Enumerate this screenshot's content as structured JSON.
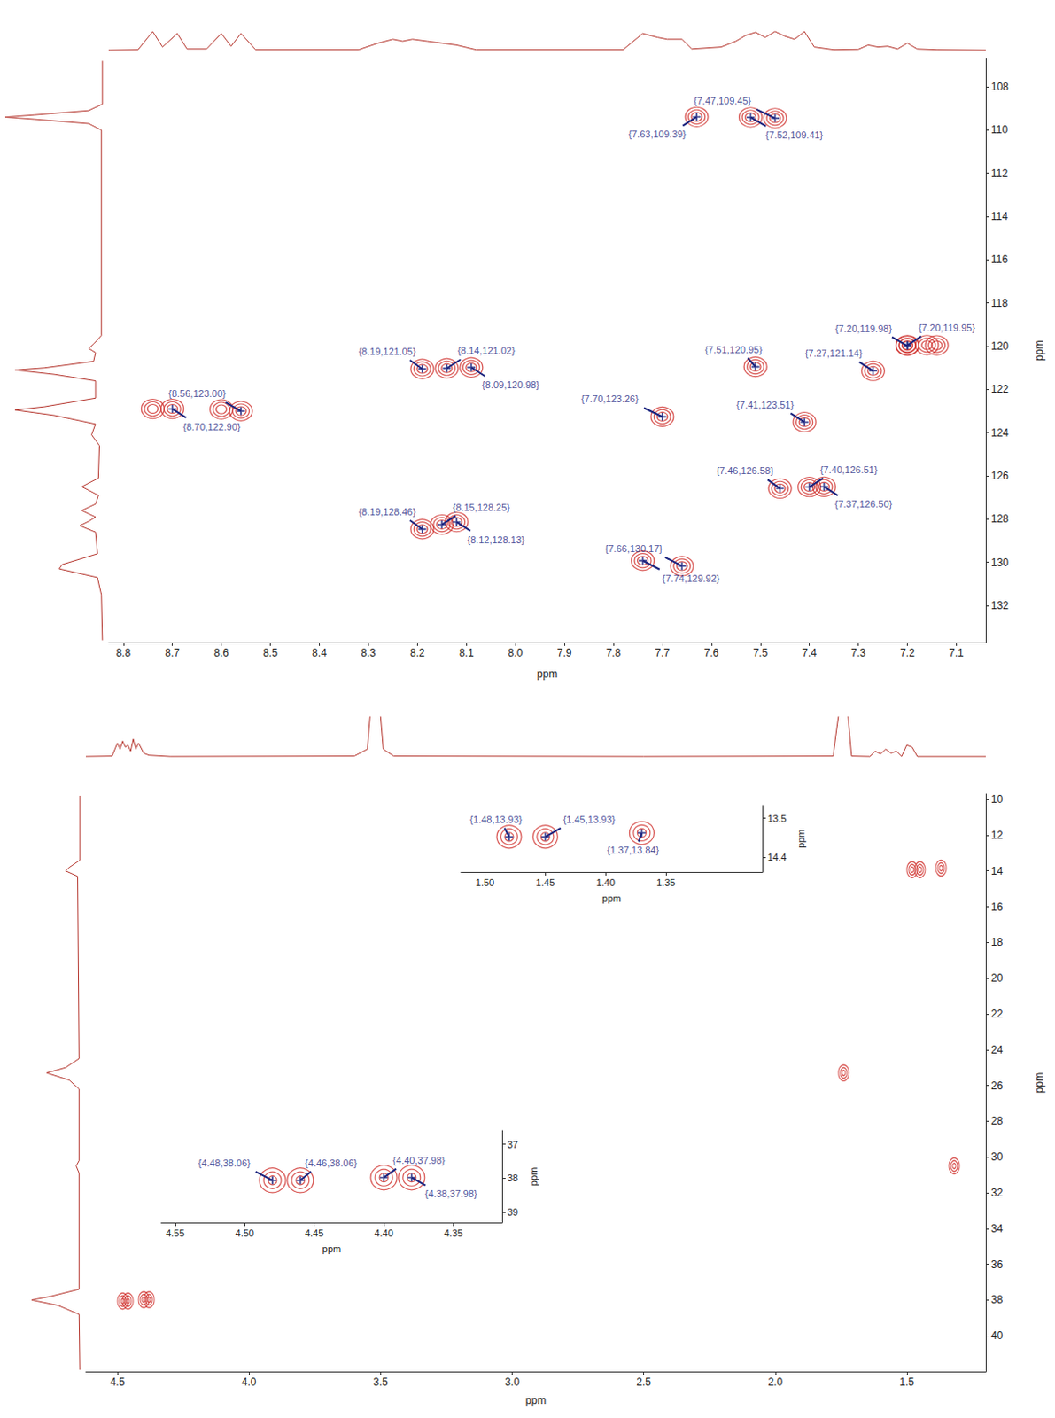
{
  "chart_data": [
    {
      "type": "scatter",
      "x_label": "ppm",
      "y_label": "ppm",
      "color": "#d0312d",
      "xlim": [
        8.83,
        7.04
      ],
      "ylim": [
        133.7,
        106.7
      ],
      "xticks": [
        8.8,
        8.7,
        8.6,
        8.5,
        8.4,
        8.3,
        8.2,
        8.1,
        {
          "value": 8,
          "label": "8.0"
        },
        7.9,
        7.8,
        7.7,
        7.6,
        7.5,
        7.4,
        7.3,
        7.2,
        7.1
      ],
      "yticks": [
        108,
        110,
        112,
        114,
        116,
        118,
        120,
        122,
        124,
        126,
        128,
        130,
        132
      ],
      "peaks": {
        "x": [
          7.47,
          7.63,
          7.52,
          8.19,
          8.14,
          8.09,
          8.56,
          8.7,
          7.7,
          8.19,
          8.15,
          8.12,
          7.66,
          7.74,
          7.51,
          7.27,
          7.2,
          7.2,
          7.41,
          7.46,
          7.4,
          7.37,
          8.74,
          8.6,
          7.16,
          7.14
        ],
        "y": [
          109.45,
          109.39,
          109.41,
          121.05,
          121.02,
          120.98,
          123.0,
          122.9,
          123.26,
          128.46,
          128.25,
          128.13,
          130.17,
          129.92,
          120.95,
          121.14,
          119.98,
          119.95,
          123.51,
          126.58,
          126.51,
          126.5,
          122.9,
          122.92,
          119.95,
          119.96
        ],
        "labels": [
          "{7.47,109.45}",
          "{7.63,109.39}",
          "{7.52,109.41}",
          "{8.19,121.05}",
          "{8.14,121.02}",
          "{8.09,120.98}",
          "{8.56,123.00}",
          "{8.70,122.90}",
          "{7.70,123.26}",
          "{8.19,128.46}",
          "{8.15,128.25}",
          "{8.12,128.13}",
          "{7.66,130.17}",
          "{7.74,129.92}",
          "{7.51,120.95}",
          "{7.27,121.14}",
          "{7.20,119.98}",
          "{7.20,119.95}",
          "{7.41,123.51}",
          "{7.46,126.58}",
          "{7.40,126.51}",
          "{7.37,126.50}",
          null,
          null,
          null,
          null
        ]
      },
      "x_projection": {
        "x": [
          8.83,
          8.77,
          8.74,
          8.72,
          8.69,
          8.67,
          8.63,
          8.6,
          8.58,
          8.56,
          8.53,
          8.32,
          8.28,
          8.25,
          8.23,
          8.21,
          8.18,
          8.15,
          8.12,
          8.08,
          7.78,
          7.74,
          7.71,
          7.69,
          7.66,
          7.64,
          7.58,
          7.55,
          7.53,
          7.51,
          7.49,
          7.47,
          7.45,
          7.43,
          7.41,
          7.39,
          7.35,
          7.3,
          7.28,
          7.26,
          7.24,
          7.22,
          7.2,
          7.18,
          7.14,
          7.04
        ],
        "values": [
          0.02,
          0.03,
          0.5,
          0.1,
          0.45,
          0.05,
          0.05,
          0.45,
          0.12,
          0.45,
          0.03,
          0.03,
          0.2,
          0.3,
          0.25,
          0.3,
          0.25,
          0.2,
          0.15,
          0.03,
          0.03,
          0.45,
          0.35,
          0.3,
          0.3,
          0.05,
          0.1,
          0.25,
          0.4,
          0.48,
          0.35,
          0.5,
          0.38,
          0.3,
          0.5,
          0.1,
          0.03,
          0.04,
          0.15,
          0.1,
          0.12,
          0.05,
          0.2,
          0.05,
          0.03,
          0.02
        ],
        "range": [
          0,
          1
        ]
      },
      "y_projection": {
        "y": [
          106.8,
          108.8,
          109.1,
          109.3,
          109.4,
          109.5,
          109.7,
          110,
          119.5,
          119.9,
          120.1,
          120.3,
          120.7,
          121,
          121.1,
          121.3,
          121.6,
          122.4,
          122.8,
          122.95,
          123.2,
          123.6,
          124.1,
          124.6,
          126.1,
          126.5,
          126.9,
          127.3,
          127.6,
          127.9,
          128.1,
          128.3,
          128.6,
          129.6,
          130.1,
          130.3,
          130.7,
          131.5,
          133.6
        ],
        "values": [
          0.01,
          0.01,
          0.15,
          0.7,
          1.0,
          0.7,
          0.15,
          0.02,
          0.02,
          0.1,
          0.15,
          0.08,
          0.1,
          0.6,
          0.9,
          0.5,
          0.08,
          0.08,
          0.6,
          0.9,
          0.5,
          0.08,
          0.12,
          0.04,
          0.05,
          0.22,
          0.05,
          0.08,
          0.22,
          0.08,
          0.15,
          0.24,
          0.08,
          0.06,
          0.42,
          0.45,
          0.06,
          0.02,
          0.01
        ],
        "range": [
          0,
          1
        ]
      }
    },
    {
      "type": "scatter",
      "x_label": "ppm",
      "y_label": "ppm",
      "color": "#d0312d",
      "xlim": [
        4.62,
        1.2
      ],
      "ylim": [
        42,
        9.7
      ],
      "xticks": [
        4.5,
        {
          "value": 4,
          "label": "4.0"
        },
        3.5,
        {
          "value": 3,
          "label": "3.0"
        },
        2.5,
        {
          "value": 2,
          "label": "2.0"
        },
        1.5
      ],
      "yticks": [
        10,
        12,
        14,
        16,
        18,
        20,
        22,
        24,
        26,
        28,
        30,
        32,
        34,
        36,
        38,
        40
      ],
      "peaks": {
        "x": [
          4.48,
          4.46,
          4.4,
          4.38,
          1.48,
          1.45,
          1.37,
          1.74,
          1.32
        ],
        "y": [
          38.06,
          38.06,
          37.98,
          37.98,
          13.93,
          13.93,
          13.84,
          25.3,
          30.5
        ]
      },
      "x_projection": {
        "x": [
          4.62,
          4.52,
          4.5,
          4.49,
          4.48,
          4.47,
          4.46,
          4.45,
          4.44,
          4.43,
          4.42,
          4.4,
          4.38,
          4.3,
          3.6,
          3.55,
          3.53,
          3.51,
          3.49,
          3.45,
          2.5,
          1.78,
          1.75,
          1.73,
          1.71,
          1.64,
          1.62,
          1.6,
          1.58,
          1.56,
          1.54,
          1.52,
          1.5,
          1.48,
          1.46,
          1.2
        ],
        "values": [
          0.02,
          0.03,
          0.35,
          0.2,
          0.4,
          0.25,
          0.3,
          0.15,
          0.45,
          0.2,
          0.35,
          0.1,
          0.05,
          0.02,
          0.03,
          0.2,
          1.8,
          1.8,
          0.2,
          0.03,
          0.02,
          0.03,
          1.5,
          1.5,
          0.03,
          0.02,
          0.15,
          0.08,
          0.2,
          0.1,
          0.15,
          0.02,
          0.3,
          0.25,
          0.02,
          0.02
        ],
        "range": [
          0,
          1
        ]
      },
      "y_projection": {
        "y": [
          9.8,
          13.4,
          13.8,
          14,
          14.3,
          24.5,
          25,
          25.3,
          25.7,
          26.2,
          30.2,
          30.5,
          30.9,
          37.4,
          37.8,
          38,
          38.3,
          38.8,
          41.9
        ],
        "values": [
          0.01,
          0.01,
          0.15,
          0.2,
          0.04,
          0.02,
          0.2,
          0.45,
          0.15,
          0.02,
          0.02,
          0.06,
          0.02,
          0.02,
          0.4,
          0.65,
          0.3,
          0.02,
          0.01
        ],
        "range": [
          0,
          1
        ]
      }
    },
    {
      "type": "scatter",
      "x_label": "ppm",
      "y_label": "ppm",
      "color": "#d0312d",
      "xlim": [
        1.52,
        1.27
      ],
      "ylim": [
        14.75,
        13.2
      ],
      "xticks": [
        {
          "value": 1.5,
          "label": "1.50"
        },
        1.45,
        {
          "value": 1.4,
          "label": "1.40"
        },
        1.35
      ],
      "yticks": [
        13.5,
        14.4
      ],
      "peaks": {
        "x": [
          1.48,
          1.45,
          1.37
        ],
        "y": [
          13.93,
          13.93,
          13.84
        ],
        "labels": [
          "{1.48,13.93}",
          "{1.45,13.93}",
          "{1.37,13.84}"
        ]
      }
    },
    {
      "type": "scatter",
      "x_label": "ppm",
      "y_label": "ppm",
      "color": "#d0312d",
      "xlim": [
        4.56,
        4.315
      ],
      "ylim": [
        39.3,
        36.6
      ],
      "xticks": [
        4.55,
        {
          "value": 4.5,
          "label": "4.50"
        },
        4.45,
        {
          "value": 4.4,
          "label": "4.40"
        },
        4.35
      ],
      "yticks": [
        37,
        38,
        39
      ],
      "peaks": {
        "x": [
          4.48,
          4.46,
          4.4,
          4.38
        ],
        "y": [
          38.06,
          38.06,
          37.98,
          37.98
        ],
        "labels": [
          "{4.48,38.06}",
          "{4.46,38.06}",
          "{4.40,37.98}",
          "{4.38,37.98}"
        ]
      }
    }
  ]
}
